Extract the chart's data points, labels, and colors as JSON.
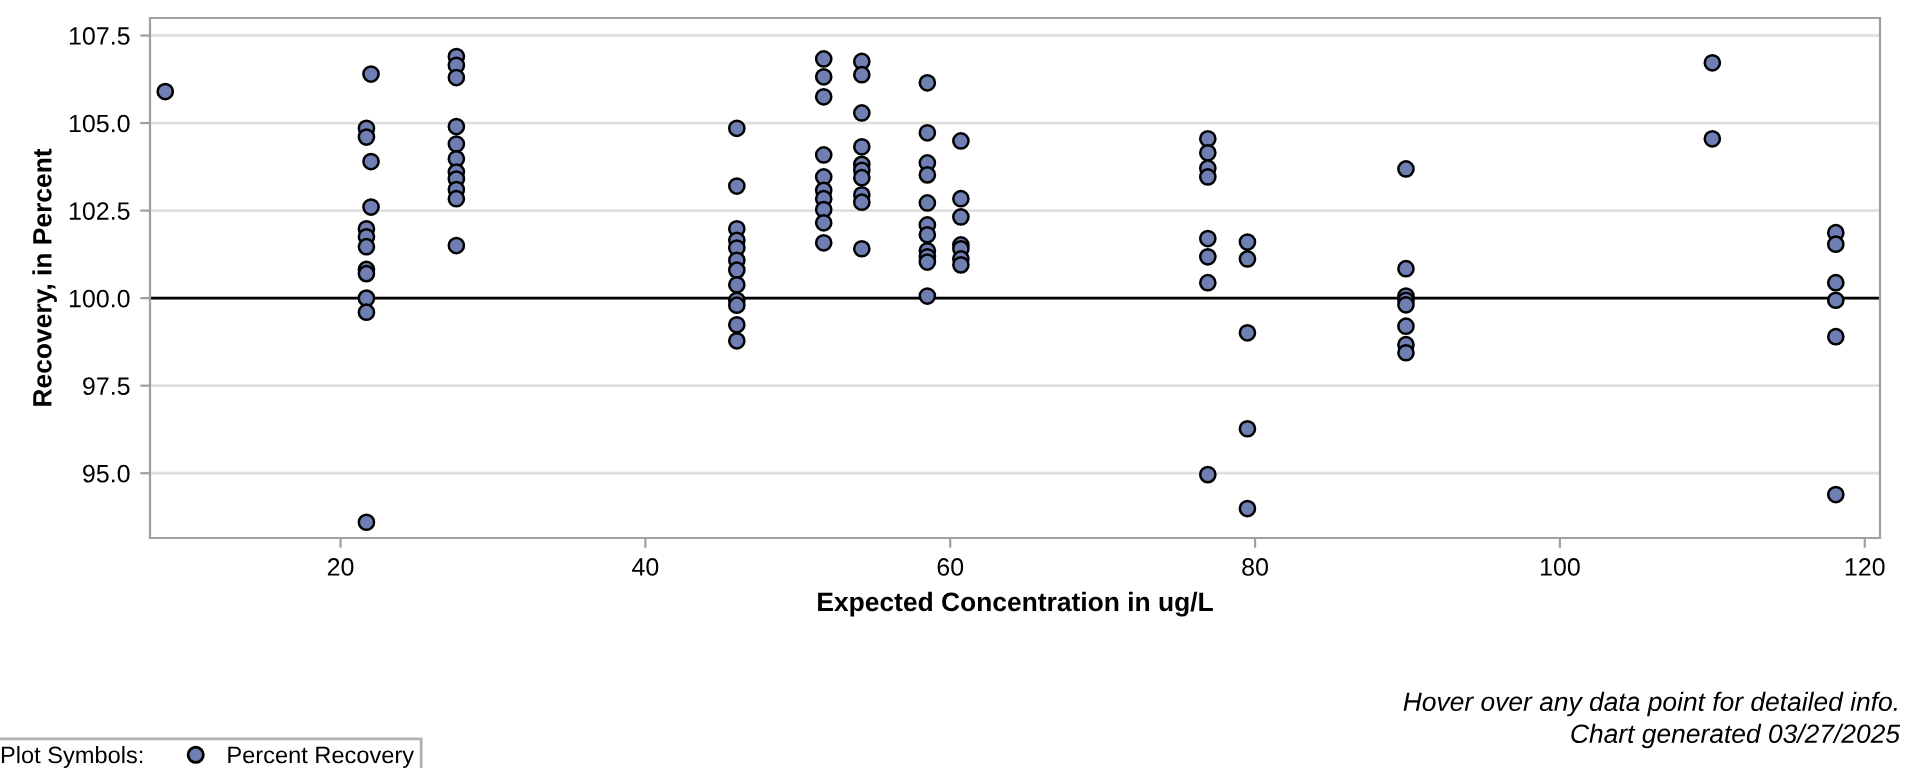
{
  "chart_data": {
    "type": "scatter",
    "xlabel": "Expected Concentration in ug/L",
    "ylabel": "Recovery, in Percent",
    "legend_title": "Plot Symbols:",
    "legend": "bottom",
    "marker": "circle",
    "grid": "y",
    "xlim": [
      7.5,
      121
    ],
    "xticks": [
      20,
      40,
      60,
      80,
      100,
      120
    ],
    "ylim": [
      93.15,
      108
    ],
    "yticks": [
      {
        "value": 95,
        "label": "95.0"
      },
      {
        "value": 97.5,
        "label": "97.5"
      },
      {
        "value": 100,
        "label": "100.0"
      },
      {
        "value": 102.5,
        "label": "102.5"
      },
      {
        "value": 105,
        "label": "105.0"
      },
      {
        "value": 107.5,
        "label": "107.5"
      }
    ],
    "ref_lines": [
      {
        "axis": "y",
        "value": 100,
        "label": null,
        "color": "#000000"
      }
    ],
    "annotations": [
      "Hover over any data point for detailed info.",
      "Chart generated 03/27/2025"
    ],
    "series": [
      {
        "name": "Percent Recovery",
        "color": "#6f7eb3",
        "x": [
          8.5,
          21.7,
          21.7,
          21.7,
          21.7,
          21.7,
          21.7,
          21.7,
          21.7,
          21.7,
          21.7,
          22.0,
          22.0,
          22.0,
          27.6,
          27.6,
          27.6,
          27.6,
          27.6,
          27.6,
          27.6,
          27.6,
          27.6,
          27.6,
          27.6,
          46.0,
          46.0,
          46.0,
          46.0,
          46.0,
          46.0,
          46.0,
          46.0,
          46.0,
          46.0,
          46.0,
          46.0,
          51.7,
          51.7,
          51.7,
          51.7,
          51.7,
          51.7,
          51.7,
          51.7,
          51.7,
          51.7,
          54.2,
          54.2,
          54.2,
          54.2,
          54.2,
          54.2,
          54.2,
          54.2,
          54.2,
          54.2,
          58.5,
          58.5,
          58.5,
          58.5,
          58.5,
          58.5,
          58.5,
          58.5,
          58.5,
          58.5,
          58.5,
          60.7,
          60.7,
          60.7,
          60.7,
          60.7,
          60.7,
          60.7,
          76.9,
          76.9,
          76.9,
          76.9,
          76.9,
          76.9,
          76.9,
          76.9,
          79.5,
          79.5,
          79.5,
          79.5,
          79.5,
          89.9,
          89.9,
          89.9,
          89.9,
          89.9,
          89.9,
          89.9,
          89.9,
          110.0,
          110.0,
          118.1,
          118.1,
          118.1,
          118.1,
          118.1,
          118.1
        ],
        "values": [
          105.9,
          104.85,
          104.6,
          101.98,
          101.75,
          101.47,
          100.82,
          100.7,
          100.0,
          99.6,
          93.6,
          106.4,
          103.9,
          102.6,
          106.9,
          106.65,
          106.3,
          104.9,
          104.4,
          103.98,
          103.6,
          103.4,
          103.1,
          102.84,
          101.5,
          104.85,
          103.2,
          101.98,
          101.65,
          101.43,
          101.08,
          100.8,
          100.38,
          99.94,
          99.8,
          99.24,
          98.78,
          106.83,
          106.32,
          105.75,
          104.09,
          103.46,
          103.08,
          102.84,
          102.53,
          102.15,
          101.58,
          106.76,
          106.38,
          105.29,
          104.32,
          103.82,
          103.65,
          103.44,
          102.95,
          102.74,
          101.41,
          106.15,
          104.72,
          103.86,
          103.52,
          102.72,
          102.09,
          101.81,
          101.35,
          101.18,
          101.03,
          100.06,
          104.49,
          102.84,
          102.32,
          101.52,
          101.41,
          101.12,
          100.95,
          104.55,
          104.15,
          103.71,
          103.46,
          101.7,
          101.18,
          100.44,
          94.96,
          101.6,
          101.12,
          99.01,
          96.27,
          93.99,
          103.69,
          100.84,
          100.06,
          99.94,
          99.81,
          99.2,
          98.67,
          98.44,
          106.72,
          104.55,
          101.87,
          101.54,
          100.44,
          99.94,
          98.9,
          94.39
        ]
      }
    ]
  }
}
